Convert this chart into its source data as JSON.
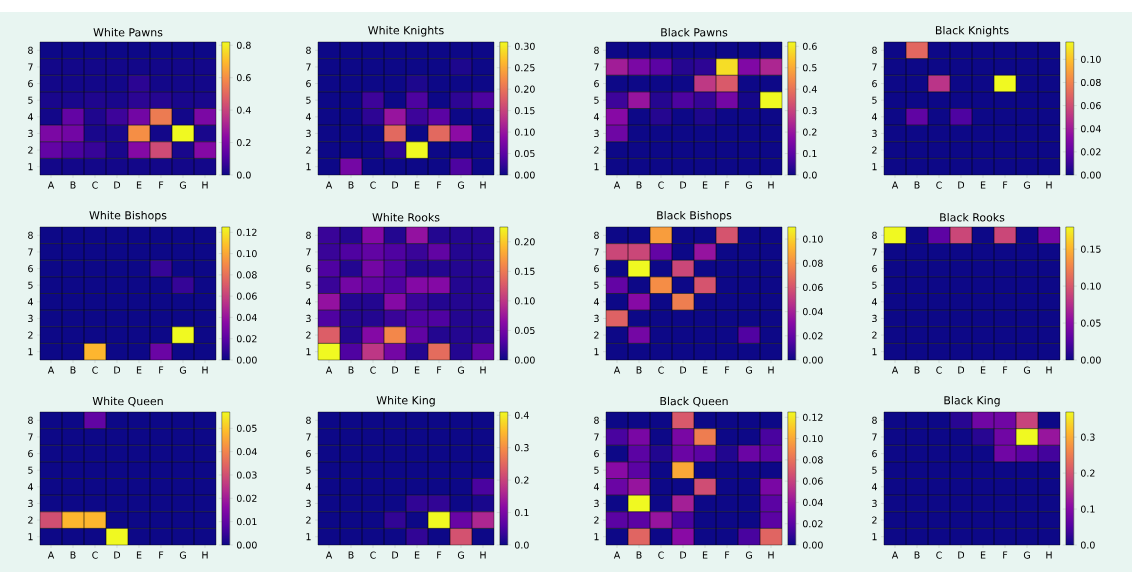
{
  "chart_data": [
    {
      "type": "heatmap",
      "title": "White Pawns",
      "categories": [
        "A",
        "B",
        "C",
        "D",
        "E",
        "F",
        "G",
        "H"
      ],
      "y_categories": [
        "8",
        "7",
        "6",
        "5",
        "4",
        "3",
        "2",
        "1"
      ],
      "cells": [
        [
          0,
          0,
          0,
          0,
          0,
          0,
          0,
          0
        ],
        [
          0.01,
          0.01,
          0.01,
          0.01,
          0.01,
          0.01,
          0.01,
          0.01
        ],
        [
          0.01,
          0.01,
          0.01,
          0.01,
          0.05,
          0.01,
          0.01,
          0.01
        ],
        [
          0.02,
          0.02,
          0.03,
          0.02,
          0.05,
          0.04,
          0.02,
          0.02
        ],
        [
          0.01,
          0.15,
          0.03,
          0.08,
          0.18,
          0.55,
          0.01,
          0.2
        ],
        [
          0.2,
          0.18,
          0.02,
          0.02,
          0.6,
          0.01,
          0.82,
          0.02
        ],
        [
          0.15,
          0.1,
          0.07,
          0.02,
          0.22,
          0.42,
          0.02,
          0.22
        ],
        [
          0.01,
          0.01,
          0.01,
          0.01,
          0.01,
          0.01,
          0.01,
          0.01
        ]
      ],
      "clim": [
        0,
        0.82
      ],
      "cticks": [
        {
          "value": 0,
          "label": "0.0"
        },
        {
          "value": 0.2,
          "label": "0.2"
        },
        {
          "value": 0.4,
          "label": "0.4"
        },
        {
          "value": 0.6,
          "label": "0.6"
        },
        {
          "value": 0.8,
          "label": "0.8"
        }
      ]
    },
    {
      "type": "heatmap",
      "title": "White Knights",
      "categories": [
        "A",
        "B",
        "C",
        "D",
        "E",
        "F",
        "G",
        "H"
      ],
      "y_categories": [
        "8",
        "7",
        "6",
        "5",
        "4",
        "3",
        "2",
        "1"
      ],
      "cells": [
        [
          0,
          0,
          0,
          0,
          0,
          0,
          0,
          0
        ],
        [
          0,
          0,
          0,
          0,
          0,
          0,
          0.01,
          0
        ],
        [
          0,
          0,
          0,
          0,
          0.01,
          0,
          0,
          0
        ],
        [
          0,
          0,
          0.03,
          0,
          0.04,
          0,
          0.02,
          0.04
        ],
        [
          0,
          0,
          0.02,
          0.1,
          0.03,
          0.05,
          0,
          0
        ],
        [
          0,
          0,
          0,
          0.19,
          0,
          0.19,
          0.09,
          0
        ],
        [
          0,
          0,
          0,
          0.02,
          0.31,
          0,
          0,
          0
        ],
        [
          0,
          0.07,
          0,
          0,
          0,
          0,
          0.04,
          0
        ]
      ],
      "clim": [
        0,
        0.31
      ],
      "cticks": [
        {
          "value": 0,
          "label": "0.00"
        },
        {
          "value": 0.05,
          "label": "0.05"
        },
        {
          "value": 0.1,
          "label": "0.10"
        },
        {
          "value": 0.15,
          "label": "0.15"
        },
        {
          "value": 0.2,
          "label": "0.20"
        },
        {
          "value": 0.25,
          "label": "0.25"
        },
        {
          "value": 0.3,
          "label": "0.30"
        }
      ]
    },
    {
      "type": "heatmap",
      "title": "Black Pawns",
      "categories": [
        "A",
        "B",
        "C",
        "D",
        "E",
        "F",
        "G",
        "H"
      ],
      "y_categories": [
        "8",
        "7",
        "6",
        "5",
        "4",
        "3",
        "2",
        "1"
      ],
      "cells": [
        [
          0,
          0,
          0,
          0,
          0,
          0,
          0,
          0
        ],
        [
          0.22,
          0.15,
          0.1,
          0.03,
          0.04,
          0.58,
          0.16,
          0.24
        ],
        [
          0,
          0,
          0,
          0,
          0.28,
          0.35,
          0,
          0
        ],
        [
          0.06,
          0.2,
          0.03,
          0.08,
          0.05,
          0.14,
          0.01,
          0.62
        ],
        [
          0.17,
          0,
          0.03,
          0,
          0.02,
          0,
          0,
          0
        ],
        [
          0.13,
          0,
          0,
          0,
          0,
          0,
          0,
          0
        ],
        [
          0,
          0,
          0,
          0,
          0,
          0,
          0,
          0
        ],
        [
          0,
          0,
          0,
          0,
          0,
          0,
          0,
          0
        ]
      ],
      "clim": [
        0,
        0.62
      ],
      "cticks": [
        {
          "value": 0,
          "label": "0.0"
        },
        {
          "value": 0.1,
          "label": "0.1"
        },
        {
          "value": 0.2,
          "label": "0.2"
        },
        {
          "value": 0.3,
          "label": "0.3"
        },
        {
          "value": 0.4,
          "label": "0.4"
        },
        {
          "value": 0.5,
          "label": "0.5"
        },
        {
          "value": 0.6,
          "label": "0.6"
        }
      ]
    },
    {
      "type": "heatmap",
      "title": "Black Knights",
      "categories": [
        "A",
        "B",
        "C",
        "D",
        "E",
        "F",
        "G",
        "H"
      ],
      "y_categories": [
        "8",
        "7",
        "6",
        "5",
        "4",
        "3",
        "2",
        "1"
      ],
      "cells": [
        [
          0,
          0.07,
          0,
          0,
          0,
          0,
          0,
          0
        ],
        [
          0,
          0,
          0,
          0,
          0,
          0,
          0,
          0
        ],
        [
          0,
          0,
          0.05,
          0,
          0,
          0.115,
          0,
          0
        ],
        [
          0,
          0,
          0,
          0,
          0,
          0,
          0,
          0
        ],
        [
          0,
          0.02,
          0,
          0.015,
          0,
          0,
          0,
          0
        ],
        [
          0,
          0,
          0,
          0,
          0,
          0,
          0,
          0
        ],
        [
          0,
          0,
          0,
          0,
          0,
          0,
          0,
          0
        ],
        [
          0,
          0,
          0,
          0,
          0,
          0,
          0,
          0
        ]
      ],
      "clim": [
        0,
        0.115
      ],
      "cticks": [
        {
          "value": 0,
          "label": "0.00"
        },
        {
          "value": 0.02,
          "label": "0.02"
        },
        {
          "value": 0.04,
          "label": "0.04"
        },
        {
          "value": 0.06,
          "label": "0.06"
        },
        {
          "value": 0.08,
          "label": "0.08"
        },
        {
          "value": 0.1,
          "label": "0.10"
        }
      ]
    },
    {
      "type": "heatmap",
      "title": "White Bishops",
      "categories": [
        "A",
        "B",
        "C",
        "D",
        "E",
        "F",
        "G",
        "H"
      ],
      "y_categories": [
        "8",
        "7",
        "6",
        "5",
        "4",
        "3",
        "2",
        "1"
      ],
      "cells": [
        [
          0,
          0,
          0,
          0,
          0,
          0,
          0,
          0
        ],
        [
          0,
          0,
          0,
          0,
          0,
          0,
          0,
          0
        ],
        [
          0,
          0,
          0,
          0,
          0,
          0.01,
          0,
          0
        ],
        [
          0,
          0,
          0,
          0,
          0,
          0,
          0.01,
          0
        ],
        [
          0,
          0,
          0,
          0,
          0,
          0,
          0,
          0
        ],
        [
          0,
          0,
          0,
          0,
          0,
          0,
          0,
          0
        ],
        [
          0,
          0,
          0,
          0,
          0,
          0,
          0.125,
          0
        ],
        [
          0,
          0,
          0.105,
          0,
          0,
          0.025,
          0,
          0
        ]
      ],
      "clim": [
        0,
        0.125
      ],
      "cticks": [
        {
          "value": 0,
          "label": "0.00"
        },
        {
          "value": 0.02,
          "label": "0.02"
        },
        {
          "value": 0.04,
          "label": "0.04"
        },
        {
          "value": 0.06,
          "label": "0.06"
        },
        {
          "value": 0.08,
          "label": "0.08"
        },
        {
          "value": 0.1,
          "label": "0.10"
        },
        {
          "value": 0.12,
          "label": "0.12"
        }
      ]
    },
    {
      "type": "heatmap",
      "title": "White Rooks",
      "categories": [
        "A",
        "B",
        "C",
        "D",
        "E",
        "F",
        "G",
        "H"
      ],
      "y_categories": [
        "8",
        "7",
        "6",
        "5",
        "4",
        "3",
        "2",
        "1"
      ],
      "cells": [
        [
          0.02,
          0.01,
          0.06,
          0.01,
          0.07,
          0.01,
          0.01,
          0.01
        ],
        [
          0.02,
          0.03,
          0.04,
          0.03,
          0.02,
          0.04,
          0.01,
          0.01
        ],
        [
          0.03,
          0.01,
          0.05,
          0.03,
          0.01,
          0.01,
          0.01,
          0.01
        ],
        [
          0.02,
          0.05,
          0.04,
          0.03,
          0.06,
          0.06,
          0.01,
          0.01
        ],
        [
          0.07,
          0.01,
          0.01,
          0.06,
          0.02,
          0.01,
          0.01,
          0.01
        ],
        [
          0.03,
          0.01,
          0.01,
          0.02,
          0.03,
          0.03,
          0.01,
          0.01
        ],
        [
          0.13,
          0.01,
          0.06,
          0.16,
          0.04,
          0.01,
          0.01,
          0.01
        ],
        [
          0.225,
          0.03,
          0.1,
          0.05,
          0.01,
          0.14,
          0.01,
          0.04
        ]
      ],
      "clim": [
        0,
        0.225
      ],
      "cticks": [
        {
          "value": 0,
          "label": "0.00"
        },
        {
          "value": 0.05,
          "label": "0.05"
        },
        {
          "value": 0.1,
          "label": "0.10"
        },
        {
          "value": 0.15,
          "label": "0.15"
        },
        {
          "value": 0.2,
          "label": "0.20"
        }
      ]
    },
    {
      "type": "heatmap",
      "title": "Black Bishops",
      "categories": [
        "A",
        "B",
        "C",
        "D",
        "E",
        "F",
        "G",
        "H"
      ],
      "y_categories": [
        "8",
        "7",
        "6",
        "5",
        "4",
        "3",
        "2",
        "1"
      ],
      "cells": [
        [
          0,
          0,
          0.085,
          0,
          0,
          0.06,
          0,
          0
        ],
        [
          0.055,
          0.055,
          0.02,
          0,
          0.035,
          0,
          0,
          0
        ],
        [
          0,
          0.11,
          0,
          0.055,
          0,
          0,
          0,
          0
        ],
        [
          0.02,
          0,
          0.08,
          0,
          0.06,
          0,
          0,
          0
        ],
        [
          0,
          0.03,
          0,
          0.075,
          0,
          0,
          0,
          0
        ],
        [
          0.065,
          0,
          0,
          0,
          0,
          0,
          0,
          0
        ],
        [
          0,
          0.025,
          0,
          0,
          0,
          0,
          0.015,
          0
        ],
        [
          0,
          0,
          0,
          0,
          0,
          0,
          0,
          0
        ]
      ],
      "clim": [
        0,
        0.11
      ],
      "cticks": [
        {
          "value": 0,
          "label": "0.00"
        },
        {
          "value": 0.02,
          "label": "0.02"
        },
        {
          "value": 0.04,
          "label": "0.04"
        },
        {
          "value": 0.06,
          "label": "0.06"
        },
        {
          "value": 0.08,
          "label": "0.08"
        },
        {
          "value": 0.1,
          "label": "0.10"
        }
      ]
    },
    {
      "type": "heatmap",
      "title": "Black Rooks",
      "categories": [
        "A",
        "B",
        "C",
        "D",
        "E",
        "F",
        "G",
        "H"
      ],
      "y_categories": [
        "8",
        "7",
        "6",
        "5",
        "4",
        "3",
        "2",
        "1"
      ],
      "cells": [
        [
          0.18,
          0,
          0.03,
          0.09,
          0,
          0.09,
          0,
          0.04
        ],
        [
          0,
          0,
          0,
          0,
          0,
          0,
          0,
          0
        ],
        [
          0,
          0,
          0,
          0,
          0,
          0,
          0,
          0
        ],
        [
          0,
          0,
          0,
          0,
          0,
          0,
          0,
          0
        ],
        [
          0,
          0,
          0,
          0,
          0,
          0,
          0,
          0
        ],
        [
          0,
          0,
          0,
          0,
          0,
          0,
          0,
          0
        ],
        [
          0,
          0,
          0,
          0,
          0,
          0,
          0,
          0
        ],
        [
          0,
          0,
          0,
          0,
          0,
          0,
          0,
          0
        ]
      ],
      "clim": [
        0,
        0.18
      ],
      "cticks": [
        {
          "value": 0,
          "label": "0.00"
        },
        {
          "value": 0.05,
          "label": "0.05"
        },
        {
          "value": 0.1,
          "label": "0.10"
        },
        {
          "value": 0.15,
          "label": "0.15"
        }
      ]
    },
    {
      "type": "heatmap",
      "title": "White Queen",
      "categories": [
        "A",
        "B",
        "C",
        "D",
        "E",
        "F",
        "G",
        "H"
      ],
      "y_categories": [
        "8",
        "7",
        "6",
        "5",
        "4",
        "3",
        "2",
        "1"
      ],
      "cells": [
        [
          0,
          0,
          0.01,
          0,
          0,
          0,
          0,
          0
        ],
        [
          0,
          0,
          0,
          0,
          0,
          0,
          0,
          0
        ],
        [
          0,
          0,
          0,
          0,
          0,
          0,
          0,
          0
        ],
        [
          0,
          0,
          0,
          0,
          0,
          0,
          0,
          0
        ],
        [
          0,
          0,
          0,
          0,
          0,
          0,
          0,
          0
        ],
        [
          0,
          0,
          0,
          0,
          0,
          0,
          0,
          0
        ],
        [
          0.03,
          0.048,
          0.048,
          0,
          0,
          0,
          0,
          0
        ],
        [
          0,
          0,
          0,
          0.057,
          0,
          0,
          0,
          0
        ]
      ],
      "clim": [
        0,
        0.057
      ],
      "cticks": [
        {
          "value": 0,
          "label": "0.00"
        },
        {
          "value": 0.01,
          "label": "0.01"
        },
        {
          "value": 0.02,
          "label": "0.02"
        },
        {
          "value": 0.03,
          "label": "0.03"
        },
        {
          "value": 0.04,
          "label": "0.04"
        },
        {
          "value": 0.05,
          "label": "0.05"
        }
      ]
    },
    {
      "type": "heatmap",
      "title": "White King",
      "categories": [
        "A",
        "B",
        "C",
        "D",
        "E",
        "F",
        "G",
        "H"
      ],
      "y_categories": [
        "8",
        "7",
        "6",
        "5",
        "4",
        "3",
        "2",
        "1"
      ],
      "cells": [
        [
          0,
          0,
          0,
          0,
          0,
          0,
          0,
          0
        ],
        [
          0,
          0,
          0,
          0,
          0,
          0,
          0,
          0
        ],
        [
          0,
          0,
          0,
          0,
          0,
          0,
          0,
          0
        ],
        [
          0,
          0,
          0,
          0,
          0,
          0,
          0,
          0
        ],
        [
          0,
          0,
          0,
          0,
          0,
          0,
          0,
          0.05
        ],
        [
          0,
          0,
          0,
          0,
          0.03,
          0.03,
          0,
          0.01
        ],
        [
          0,
          0,
          0,
          0.03,
          0,
          0.41,
          0.08,
          0.16
        ],
        [
          0,
          0,
          0,
          0,
          0.03,
          0,
          0.22,
          0
        ]
      ],
      "clim": [
        0,
        0.41
      ],
      "cticks": [
        {
          "value": 0,
          "label": "0.0"
        },
        {
          "value": 0.1,
          "label": "0.1"
        },
        {
          "value": 0.2,
          "label": "0.2"
        },
        {
          "value": 0.3,
          "label": "0.3"
        },
        {
          "value": 0.4,
          "label": "0.4"
        }
      ]
    },
    {
      "type": "heatmap",
      "title": "Black Queen",
      "categories": [
        "A",
        "B",
        "C",
        "D",
        "E",
        "F",
        "G",
        "H"
      ],
      "y_categories": [
        "8",
        "7",
        "6",
        "5",
        "4",
        "3",
        "2",
        "1"
      ],
      "cells": [
        [
          0,
          0,
          0,
          0.07,
          0,
          0,
          0,
          0
        ],
        [
          0.015,
          0.03,
          0,
          0.03,
          0.085,
          0,
          0,
          0.015
        ],
        [
          0,
          0.02,
          0.005,
          0.025,
          0.02,
          0.005,
          0.025,
          0.02
        ],
        [
          0.035,
          0.02,
          0,
          0.1,
          0,
          0,
          0,
          0
        ],
        [
          0.025,
          0.04,
          0,
          0,
          0.065,
          0,
          0,
          0.03
        ],
        [
          0,
          0.125,
          0,
          0.045,
          0,
          0,
          0,
          0.02
        ],
        [
          0.02,
          0.02,
          0.04,
          0.015,
          0,
          0,
          0,
          0.02
        ],
        [
          0,
          0.075,
          0,
          0.035,
          0,
          0,
          0.015,
          0.075
        ]
      ],
      "clim": [
        0,
        0.125
      ],
      "cticks": [
        {
          "value": 0,
          "label": "0.00"
        },
        {
          "value": 0.02,
          "label": "0.02"
        },
        {
          "value": 0.04,
          "label": "0.04"
        },
        {
          "value": 0.06,
          "label": "0.06"
        },
        {
          "value": 0.08,
          "label": "0.08"
        },
        {
          "value": 0.1,
          "label": "0.10"
        },
        {
          "value": 0.12,
          "label": "0.12"
        }
      ]
    },
    {
      "type": "heatmap",
      "title": "Black King",
      "categories": [
        "A",
        "B",
        "C",
        "D",
        "E",
        "F",
        "G",
        "H"
      ],
      "y_categories": [
        "8",
        "7",
        "6",
        "5",
        "4",
        "3",
        "2",
        "1"
      ],
      "cells": [
        [
          0,
          0,
          0,
          0.02,
          0.08,
          0.08,
          0.18,
          0
        ],
        [
          0,
          0,
          0,
          0,
          0.02,
          0.08,
          0.37,
          0.12
        ],
        [
          0,
          0,
          0,
          0,
          0,
          0.08,
          0.06,
          0.04
        ],
        [
          0,
          0,
          0,
          0,
          0,
          0,
          0,
          0
        ],
        [
          0,
          0,
          0,
          0,
          0,
          0,
          0,
          0
        ],
        [
          0,
          0,
          0,
          0,
          0,
          0,
          0,
          0
        ],
        [
          0,
          0,
          0,
          0,
          0,
          0,
          0,
          0
        ],
        [
          0,
          0,
          0,
          0,
          0,
          0,
          0,
          0
        ]
      ],
      "clim": [
        0,
        0.37
      ],
      "cticks": [
        {
          "value": 0,
          "label": "0.0"
        },
        {
          "value": 0.1,
          "label": "0.1"
        },
        {
          "value": 0.2,
          "label": "0.2"
        },
        {
          "value": 0.3,
          "label": "0.3"
        }
      ]
    }
  ]
}
